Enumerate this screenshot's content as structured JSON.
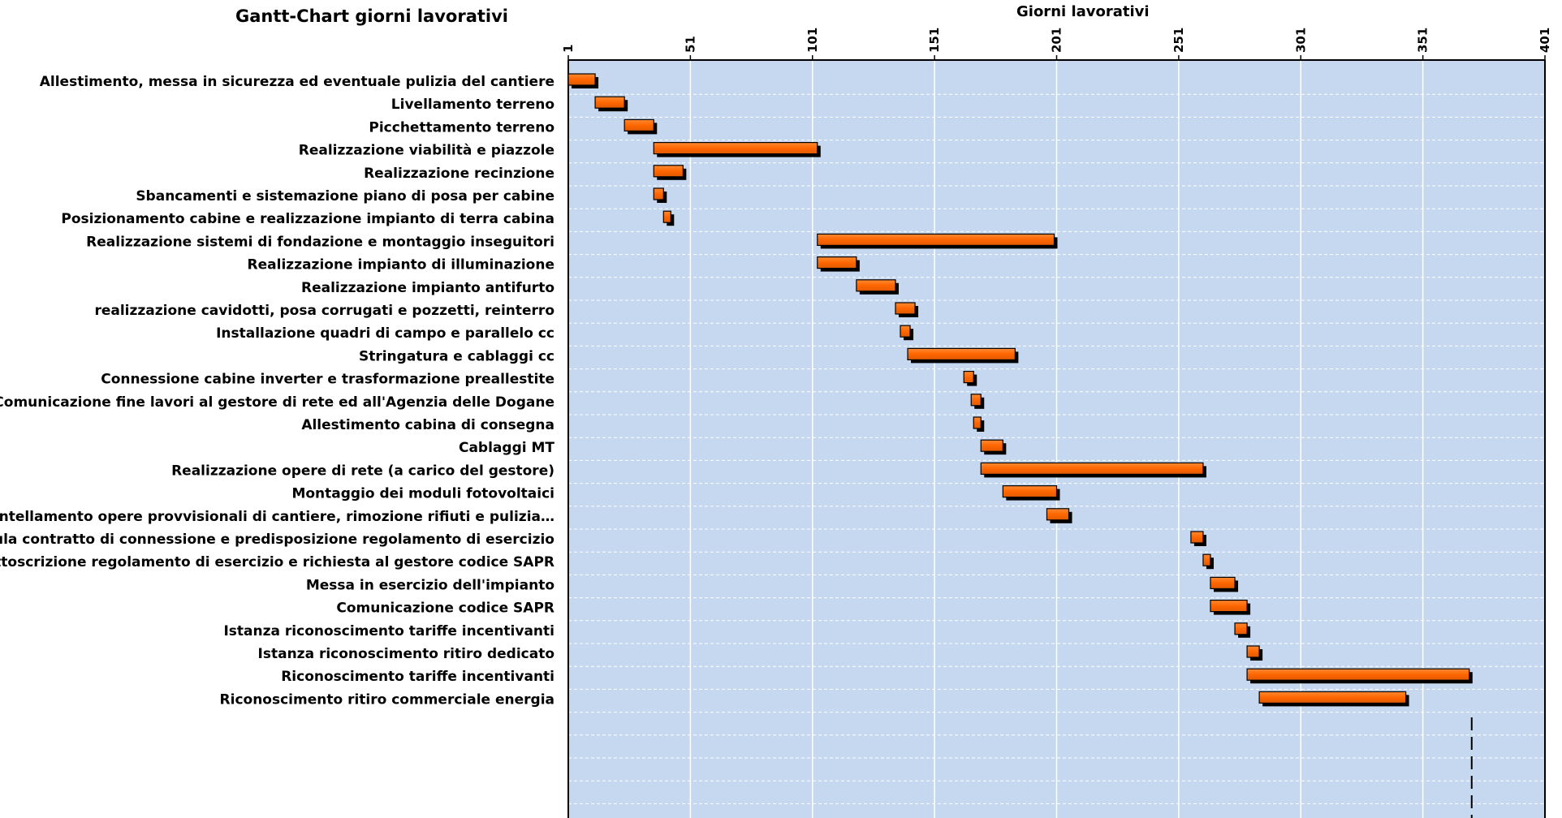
{
  "chart_data": {
    "type": "gantt",
    "title": "Gantt-Chart giorni lavorativi",
    "xlabel": "Giorni lavorativi",
    "xlim": [
      1,
      401
    ],
    "xticks": [
      "1",
      "51",
      "101",
      "151",
      "201",
      "251",
      "301",
      "351",
      "401"
    ],
    "grid": true,
    "background_color": "#c6d8ef",
    "bar_color": "#ff6600",
    "marker_day": 371,
    "tasks": [
      {
        "name": "Allestimento, messa in sicurezza ed eventuale pulizia del cantiere",
        "start": 1,
        "end": 12
      },
      {
        "name": "Livellamento terreno",
        "start": 12,
        "end": 24
      },
      {
        "name": "Picchettamento terreno",
        "start": 24,
        "end": 36
      },
      {
        "name": "Realizzazione viabilità e piazzole",
        "start": 36,
        "end": 103
      },
      {
        "name": "Realizzazione recinzione",
        "start": 36,
        "end": 48
      },
      {
        "name": "Sbancamenti e sistemazione piano di posa per cabine",
        "start": 36,
        "end": 40
      },
      {
        "name": "Posizionamento cabine e realizzazione impianto di terra cabina",
        "start": 40,
        "end": 43
      },
      {
        "name": "Realizzazione sistemi di fondazione e montaggio inseguitori",
        "start": 103,
        "end": 200
      },
      {
        "name": "Realizzazione impianto di illuminazione",
        "start": 103,
        "end": 119
      },
      {
        "name": "Realizzazione impianto antifurto",
        "start": 119,
        "end": 135
      },
      {
        "name": "realizzazione cavidotti, posa corrugati e pozzetti, reinterro",
        "start": 135,
        "end": 143
      },
      {
        "name": "Installazione quadri di campo e parallelo cc",
        "start": 137,
        "end": 141
      },
      {
        "name": "Stringatura e cablaggi cc",
        "start": 140,
        "end": 184
      },
      {
        "name": "Connessione cabine inverter e trasformazione preallestite",
        "start": 163,
        "end": 167
      },
      {
        "name": "Comunicazione fine lavori al gestore di rete ed all'Agenzia delle Dogane",
        "start": 166,
        "end": 170
      },
      {
        "name": "Allestimento cabina di consegna",
        "start": 167,
        "end": 170
      },
      {
        "name": "Cablaggi MT",
        "start": 170,
        "end": 179
      },
      {
        "name": "Realizzazione opere di rete (a carico del gestore)",
        "start": 170,
        "end": 261
      },
      {
        "name": "Montaggio dei moduli fotovoltaici",
        "start": 179,
        "end": 201
      },
      {
        "name": "Smantellamento opere provvisionali di cantiere, rimozione rifiuti e pulizia…",
        "start": 197,
        "end": 206
      },
      {
        "name": "Stipula contratto di connessione e predisposizione regolamento di esercizio",
        "start": 256,
        "end": 261
      },
      {
        "name": "Sottoscrizione regolamento di esercizio e richiesta al gestore codice SAPR",
        "start": 261,
        "end": 264
      },
      {
        "name": "Messa in esercizio dell'impianto",
        "start": 264,
        "end": 274
      },
      {
        "name": "Comunicazione codice SAPR",
        "start": 264,
        "end": 279
      },
      {
        "name": "Istanza riconoscimento tariffe incentivanti",
        "start": 274,
        "end": 279
      },
      {
        "name": "Istanza riconoscimento ritiro dedicato",
        "start": 279,
        "end": 284
      },
      {
        "name": "Riconoscimento tariffe incentivanti",
        "start": 279,
        "end": 370
      },
      {
        "name": "Riconoscimento ritiro commerciale energia",
        "start": 284,
        "end": 344
      }
    ]
  }
}
